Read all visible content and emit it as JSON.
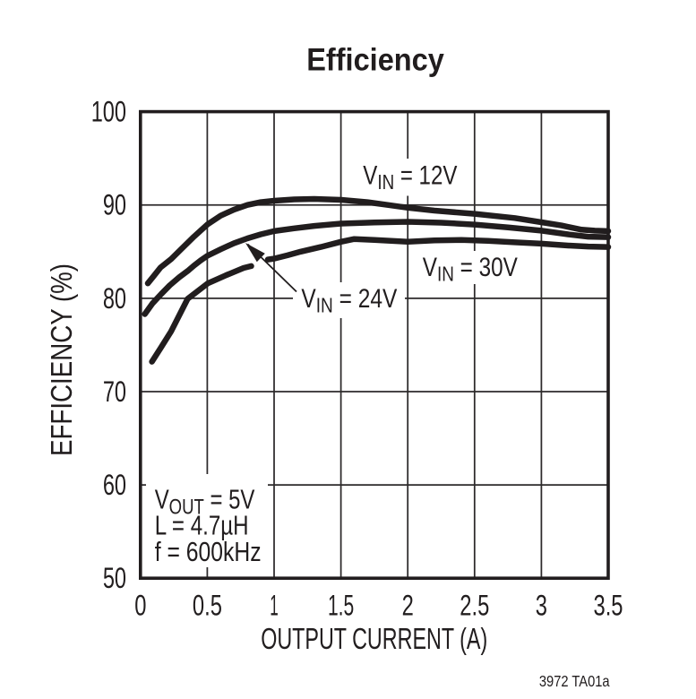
{
  "title": "Efficiency",
  "footnote": "3972 TA01a",
  "colors": {
    "ink": "#211d1e",
    "grid": "#2d2a2b",
    "background": "#ffffff"
  },
  "chart_data": {
    "type": "line",
    "title": "Efficiency",
    "xlabel": "OUTPUT CURRENT (A)",
    "ylabel": "EFFICIENCY (%)",
    "xlim": [
      0,
      3.5
    ],
    "ylim": [
      50,
      100
    ],
    "x_tick_labels": [
      "0",
      "0.5",
      "1",
      "1.5",
      "2",
      "2.5",
      "3",
      "3.5"
    ],
    "x_tick_values": [
      0,
      0.5,
      1,
      1.5,
      2,
      2.5,
      3,
      3.5
    ],
    "y_tick_labels": [
      "100",
      "90",
      "80",
      "70",
      "60",
      "50"
    ],
    "y_tick_values": [
      100,
      90,
      80,
      70,
      60,
      50
    ],
    "grid": true,
    "legend_position": "inline-labels",
    "series": [
      {
        "name": "VIN = 12V",
        "label": {
          "main": "V",
          "sub": "IN",
          "rest": " = 12V"
        },
        "points": [
          [
            0.055,
            81.6
          ],
          [
            0.1,
            82.4
          ],
          [
            0.15,
            83.3
          ],
          [
            0.23,
            84.2
          ],
          [
            0.3,
            85.2
          ],
          [
            0.4,
            86.6
          ],
          [
            0.5,
            87.9
          ],
          [
            0.6,
            88.85
          ],
          [
            0.7,
            89.5
          ],
          [
            0.8,
            90.0
          ],
          [
            0.9,
            90.3
          ],
          [
            1.0,
            90.45
          ],
          [
            1.15,
            90.6
          ],
          [
            1.3,
            90.65
          ],
          [
            1.5,
            90.55
          ],
          [
            1.7,
            90.3
          ],
          [
            1.85,
            90.0
          ],
          [
            2.0,
            89.7
          ],
          [
            2.2,
            89.4
          ],
          [
            2.5,
            89.05
          ],
          [
            2.8,
            88.6
          ],
          [
            3.0,
            88.15
          ],
          [
            3.15,
            87.8
          ],
          [
            3.3,
            87.35
          ],
          [
            3.4,
            87.25
          ],
          [
            3.5,
            87.2
          ]
        ]
      },
      {
        "name": "VIN = 24V",
        "label": {
          "main": "V",
          "sub": "IN",
          "rest": " = 24V"
        },
        "points": [
          [
            0.033,
            78.3
          ],
          [
            0.09,
            79.45
          ],
          [
            0.155,
            80.45
          ],
          [
            0.22,
            81.4
          ],
          [
            0.29,
            82.25
          ],
          [
            0.36,
            83.0
          ],
          [
            0.4,
            83.5
          ],
          [
            0.45,
            84.05
          ],
          [
            0.5,
            84.55
          ],
          [
            0.6,
            85.25
          ],
          [
            0.7,
            85.9
          ],
          [
            0.8,
            86.42
          ],
          [
            0.9,
            86.85
          ],
          [
            1.0,
            87.2
          ],
          [
            1.15,
            87.5
          ],
          [
            1.3,
            87.75
          ],
          [
            1.5,
            88.0
          ],
          [
            1.75,
            88.13
          ],
          [
            2.0,
            88.2
          ],
          [
            2.25,
            88.1
          ],
          [
            2.5,
            87.9
          ],
          [
            2.75,
            87.6
          ],
          [
            3.0,
            87.25
          ],
          [
            3.2,
            86.85
          ],
          [
            3.35,
            86.6
          ],
          [
            3.5,
            86.55
          ]
        ]
      },
      {
        "name": "VIN = 30V",
        "label": {
          "main": "V",
          "sub": "IN",
          "rest": " = 30V"
        },
        "gap": [
          0.829,
          0.953
        ],
        "points": [
          [
            0.086,
            73.2
          ],
          [
            0.155,
            74.75
          ],
          [
            0.229,
            76.45
          ],
          [
            0.353,
            79.95
          ],
          [
            0.504,
            81.6
          ],
          [
            0.638,
            82.45
          ],
          [
            0.772,
            83.25
          ],
          [
            0.829,
            83.45
          ],
          [
            0.953,
            84.15
          ],
          [
            1.0,
            84.25
          ],
          [
            1.1,
            84.6
          ],
          [
            1.2,
            85.0
          ],
          [
            1.35,
            85.5
          ],
          [
            1.5,
            86.05
          ],
          [
            1.6,
            86.35
          ],
          [
            1.75,
            86.25
          ],
          [
            2.0,
            86.05
          ],
          [
            2.2,
            86.2
          ],
          [
            2.4,
            86.25
          ],
          [
            2.6,
            86.15
          ],
          [
            2.8,
            86.0
          ],
          [
            3.0,
            85.85
          ],
          [
            3.2,
            85.65
          ],
          [
            3.35,
            85.55
          ],
          [
            3.5,
            85.5
          ]
        ]
      }
    ],
    "annotations": {
      "conditions": [
        {
          "main": "V",
          "sub": "OUT",
          "rest": " = 5V"
        },
        {
          "text": "L = 4.7µH"
        },
        {
          "text": "f = 600kHz"
        }
      ]
    }
  }
}
